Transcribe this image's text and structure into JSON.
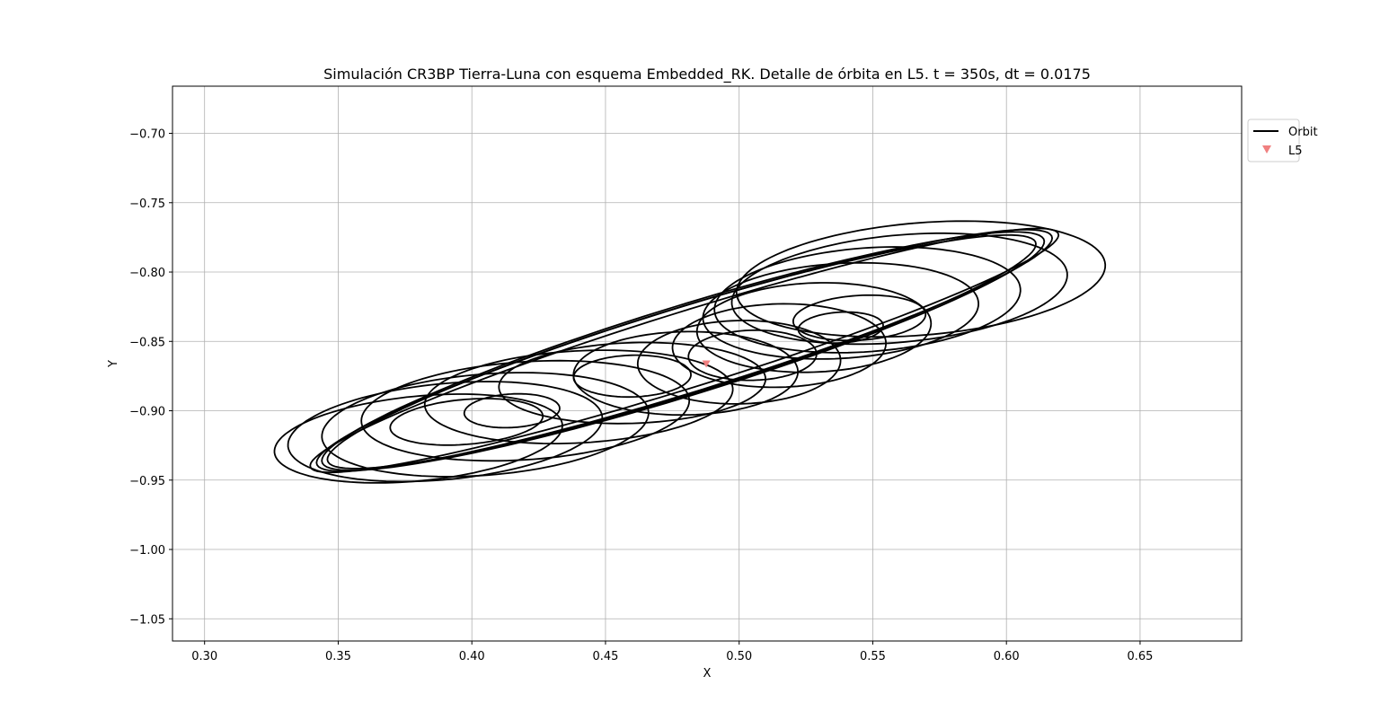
{
  "chart_data": {
    "type": "line",
    "title": "Simulación CR3BP Tierra-Luna con esquema Embedded_RK. Detalle de órbita en L5. t = 350s, dt = 0.0175",
    "xlabel": "X",
    "ylabel": "Y",
    "xlim": [
      0.288,
      0.688
    ],
    "ylim": [
      -1.066,
      -0.666
    ],
    "xticks": [
      0.3,
      0.35,
      0.4,
      0.45,
      0.5,
      0.55,
      0.6,
      0.65
    ],
    "xtick_labels": [
      "0.30",
      "0.35",
      "0.40",
      "0.45",
      "0.50",
      "0.55",
      "0.60",
      "0.65"
    ],
    "yticks": [
      -0.7,
      -0.75,
      -0.8,
      -0.85,
      -0.9,
      -0.95,
      -1.0,
      -1.05
    ],
    "ytick_labels": [
      "−0.70",
      "−0.75",
      "−0.80",
      "−0.85",
      "−0.90",
      "−0.95",
      "−1.00",
      "−1.05"
    ],
    "grid": true,
    "legend": "upper-right-outside",
    "series": [
      {
        "name": "Orbit",
        "kind": "line",
        "color": "#000000",
        "description_loops": [
          {
            "cx": 0.4795,
            "cy": -0.8565,
            "a": 0.1635,
            "b": 0.0245,
            "angle_deg": 31.5
          },
          {
            "cx": 0.4795,
            "cy": -0.8565,
            "a": 0.1605,
            "b": 0.0275,
            "angle_deg": 31.5
          },
          {
            "cx": 0.479,
            "cy": -0.857,
            "a": 0.1575,
            "b": 0.029,
            "angle_deg": 31.5
          },
          {
            "cx": 0.4785,
            "cy": -0.8575,
            "a": 0.1545,
            "b": 0.028,
            "angle_deg": 31.5
          },
          {
            "cx": 0.568,
            "cy": -0.805,
            "a": 0.07,
            "b": 0.04,
            "angle_deg": 12
          },
          {
            "cx": 0.56,
            "cy": -0.812,
            "a": 0.064,
            "b": 0.038,
            "angle_deg": 14
          },
          {
            "cx": 0.548,
            "cy": -0.82,
            "a": 0.058,
            "b": 0.037,
            "angle_deg": 12
          },
          {
            "cx": 0.538,
            "cy": -0.828,
            "a": 0.052,
            "b": 0.034,
            "angle_deg": 10
          },
          {
            "cx": 0.528,
            "cy": -0.84,
            "a": 0.044,
            "b": 0.032,
            "angle_deg": 8
          },
          {
            "cx": 0.515,
            "cy": -0.853,
            "a": 0.04,
            "b": 0.03,
            "angle_deg": 5
          },
          {
            "cx": 0.5,
            "cy": -0.865,
            "a": 0.038,
            "b": 0.03,
            "angle_deg": 5
          },
          {
            "cx": 0.545,
            "cy": -0.833,
            "a": 0.025,
            "b": 0.016,
            "angle_deg": 10
          },
          {
            "cx": 0.538,
            "cy": -0.84,
            "a": 0.016,
            "b": 0.011,
            "angle_deg": 10
          },
          {
            "cx": 0.48,
            "cy": -0.873,
            "a": 0.042,
            "b": 0.03,
            "angle_deg": 3
          },
          {
            "cx": 0.46,
            "cy": -0.88,
            "a": 0.05,
            "b": 0.029,
            "angle_deg": 5
          },
          {
            "cx": 0.44,
            "cy": -0.89,
            "a": 0.058,
            "b": 0.033,
            "angle_deg": 8
          },
          {
            "cx": 0.42,
            "cy": -0.9,
            "a": 0.062,
            "b": 0.035,
            "angle_deg": 10
          },
          {
            "cx": 0.405,
            "cy": -0.91,
            "a": 0.062,
            "b": 0.036,
            "angle_deg": 12
          },
          {
            "cx": 0.39,
            "cy": -0.915,
            "a": 0.06,
            "b": 0.034,
            "angle_deg": 14
          },
          {
            "cx": 0.38,
            "cy": -0.92,
            "a": 0.055,
            "b": 0.03,
            "angle_deg": 14
          },
          {
            "cx": 0.398,
            "cy": -0.908,
            "a": 0.029,
            "b": 0.016,
            "angle_deg": 12
          },
          {
            "cx": 0.415,
            "cy": -0.9,
            "a": 0.018,
            "b": 0.012,
            "angle_deg": 10
          },
          {
            "cx": 0.46,
            "cy": -0.875,
            "a": 0.022,
            "b": 0.015,
            "angle_deg": 5
          },
          {
            "cx": 0.505,
            "cy": -0.86,
            "a": 0.024,
            "b": 0.018,
            "angle_deg": 5
          }
        ]
      },
      {
        "name": "L5",
        "kind": "marker",
        "marker": "triangle-down",
        "color": "#f08080",
        "x": 0.4877,
        "y": -0.866
      }
    ]
  }
}
